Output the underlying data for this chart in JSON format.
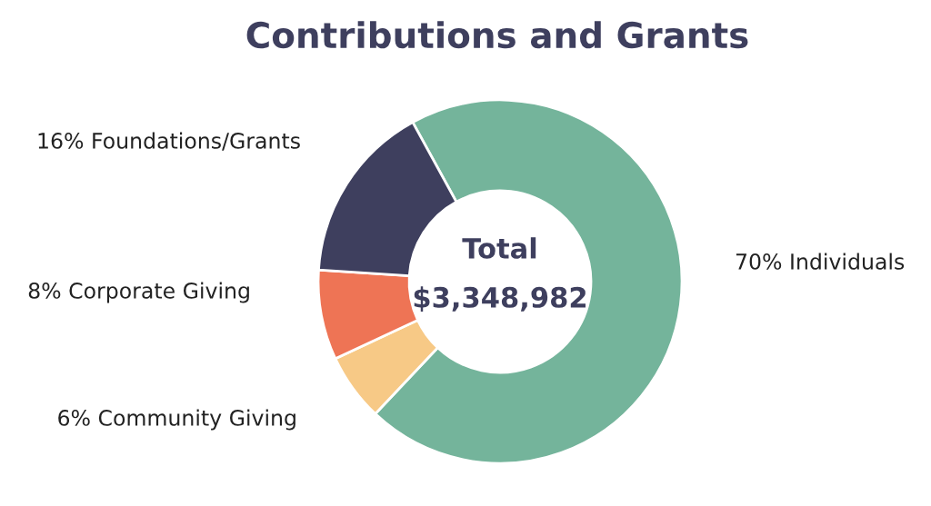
{
  "chart_data": {
    "type": "donut",
    "title": "Contributions and Grants",
    "categories": [
      "Individuals",
      "Community Giving",
      "Corporate Giving",
      "Foundations/Grants"
    ],
    "values": [
      70,
      6,
      8,
      16
    ],
    "value_labels": [
      "70%",
      "6%",
      "8%",
      "16%"
    ],
    "colors": [
      "#74b49b",
      "#f7c986",
      "#ee7455",
      "#3e3f5e"
    ],
    "annotations": [
      "Total",
      "$3,348,982"
    ],
    "legend": false
  }
}
